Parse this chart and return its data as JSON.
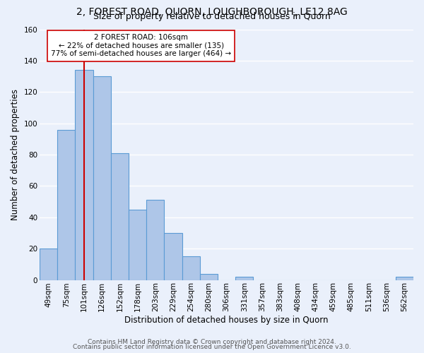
{
  "title_line1": "2, FOREST ROAD, QUORN, LOUGHBOROUGH, LE12 8AG",
  "title_line2": "Size of property relative to detached houses in Quorn",
  "xlabel": "Distribution of detached houses by size in Quorn",
  "ylabel": "Number of detached properties",
  "bar_labels": [
    "49sqm",
    "75sqm",
    "101sqm",
    "126sqm",
    "152sqm",
    "178sqm",
    "203sqm",
    "229sqm",
    "254sqm",
    "280sqm",
    "306sqm",
    "331sqm",
    "357sqm",
    "383sqm",
    "408sqm",
    "434sqm",
    "459sqm",
    "485sqm",
    "511sqm",
    "536sqm",
    "562sqm"
  ],
  "bar_values": [
    20,
    96,
    134,
    130,
    81,
    45,
    51,
    30,
    15,
    4,
    0,
    2,
    0,
    0,
    0,
    0,
    0,
    0,
    0,
    0,
    2
  ],
  "bar_color": "#aec6e8",
  "bar_edge_color": "#5b9bd5",
  "background_color": "#eaf0fb",
  "grid_color": "#ffffff",
  "ylim": [
    0,
    160
  ],
  "yticks": [
    0,
    20,
    40,
    60,
    80,
    100,
    120,
    140,
    160
  ],
  "vline_x": 2,
  "vline_color": "#cc0000",
  "annotation_text": "2 FOREST ROAD: 106sqm\n← 22% of detached houses are smaller (135)\n77% of semi-detached houses are larger (464) →",
  "annotation_box_color": "#ffffff",
  "annotation_box_edge": "#cc0000",
  "footer_line1": "Contains HM Land Registry data © Crown copyright and database right 2024.",
  "footer_line2": "Contains public sector information licensed under the Open Government Licence v3.0.",
  "title_fontsize": 10,
  "subtitle_fontsize": 9,
  "axis_label_fontsize": 8.5,
  "tick_fontsize": 7.5,
  "annotation_fontsize": 7.5,
  "footer_fontsize": 6.5
}
